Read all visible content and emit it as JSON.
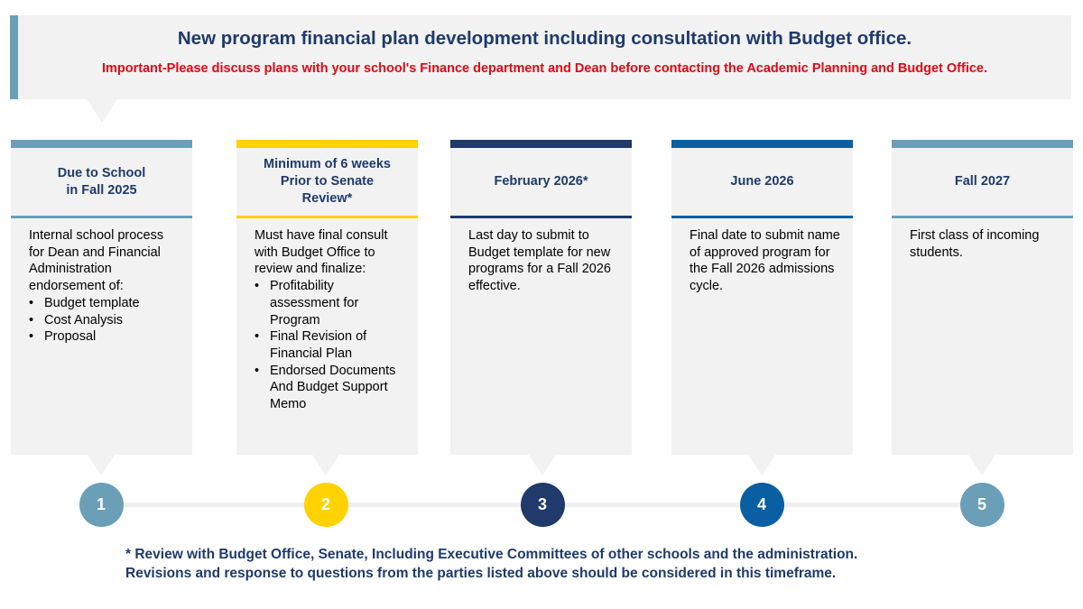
{
  "header": {
    "title": "New program financial plan development including consultation with Budget office.",
    "subtitle": "Important-Please discuss plans with your school's Finance department and Dean before contacting the Academic Planning and Budget Office."
  },
  "steps": [
    {
      "number": "1",
      "title": "Due to School in Fall 2025",
      "title_lines": [
        "Due to School",
        "in Fall 2025"
      ],
      "body": "Internal school process for Dean and Financial Administration endorsement of:",
      "bullets": [
        "Budget template",
        "Cost Analysis",
        "Proposal"
      ],
      "color": "#6b9fb8"
    },
    {
      "number": "2",
      "title": "Minimum of 6 weeks Prior to Senate Review*",
      "title_lines": [
        "Minimum of 6 weeks",
        "Prior to Senate",
        "Review*"
      ],
      "body": "Must have final consult with Budget Office to review and finalize:",
      "bullets": [
        "Profitability assessment  for Program",
        "Final Revision of Financial Plan",
        "Endorsed Documents  And Budget Support Memo"
      ],
      "color": "#ffd200"
    },
    {
      "number": "3",
      "title": "February 2026*",
      "title_lines": [
        "February 2026*"
      ],
      "body": "Last day to submit to Budget template for new programs for a Fall 2026 effective.",
      "bullets": [],
      "color": "#1f3a6b"
    },
    {
      "number": "4",
      "title": "June 2026",
      "title_lines": [
        "June 2026"
      ],
      "body": "Final date to submit name of approved program for the Fall 2026 admissions cycle.",
      "bullets": [],
      "color": "#0a5fa3"
    },
    {
      "number": "5",
      "title": "Fall 2027",
      "title_lines": [
        "Fall 2027"
      ],
      "body": "First class of incoming students.",
      "bullets": [],
      "color": "#6b9fb8"
    }
  ],
  "footnote": {
    "line1": "* Review with Budget Office, Senate, Including Executive Committees of other schools and the administration.",
    "line2": "Revisions and response to questions from the parties listed above should be considered in this timeframe."
  }
}
